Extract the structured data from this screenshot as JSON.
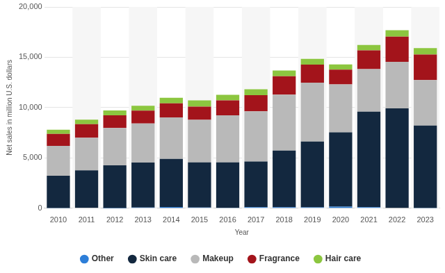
{
  "chart_data": {
    "type": "bar",
    "stacked": true,
    "x_label": "Year",
    "y_label": "Net sales in million U.S. dollars",
    "categories": [
      "2010",
      "2011",
      "2012",
      "2013",
      "2014",
      "2015",
      "2016",
      "2017",
      "2018",
      "2019",
      "2020",
      "2021",
      "2022",
      "2023"
    ],
    "series": [
      {
        "name": "Other",
        "color": "#2d7ed8",
        "values": [
          29,
          42,
          11,
          80,
          131,
          80,
          62,
          112,
          110,
          86,
          160,
          108,
          35,
          26
        ]
      },
      {
        "name": "Skin care",
        "color": "#13283f",
        "values": [
          3201,
          3718,
          4254,
          4467,
          4769,
          4478,
          4499,
          4527,
          5614,
          6551,
          7376,
          9484,
          9886,
          8185
        ]
      },
      {
        "name": "Makeup",
        "color": "#b9b9b9",
        "values": [
          2966,
          3251,
          3702,
          3876,
          4131,
          4220,
          4679,
          4995,
          5567,
          5848,
          4764,
          4237,
          4623,
          4518
        ]
      },
      {
        "name": "Fragrance",
        "color": "#a3141b",
        "values": [
          1195,
          1335,
          1265,
          1277,
          1398,
          1323,
          1479,
          1605,
          1826,
          1790,
          1475,
          1856,
          2508,
          2546
        ]
      },
      {
        "name": "Hair care",
        "color": "#8cc63f",
        "values": [
          419,
          463,
          480,
          482,
          540,
          609,
          543,
          585,
          566,
          573,
          519,
          543,
          633,
          635
        ]
      }
    ],
    "ylim": [
      0,
      20000
    ],
    "yticks": [
      0,
      {
        "value": 5000,
        "label": "5,000"
      },
      {
        "value": 10000,
        "label": "10,000"
      },
      {
        "value": 15000,
        "label": "15,000"
      },
      {
        "value": 20000,
        "label": "20,000"
      }
    ],
    "grid": true,
    "legend": "bottom"
  }
}
